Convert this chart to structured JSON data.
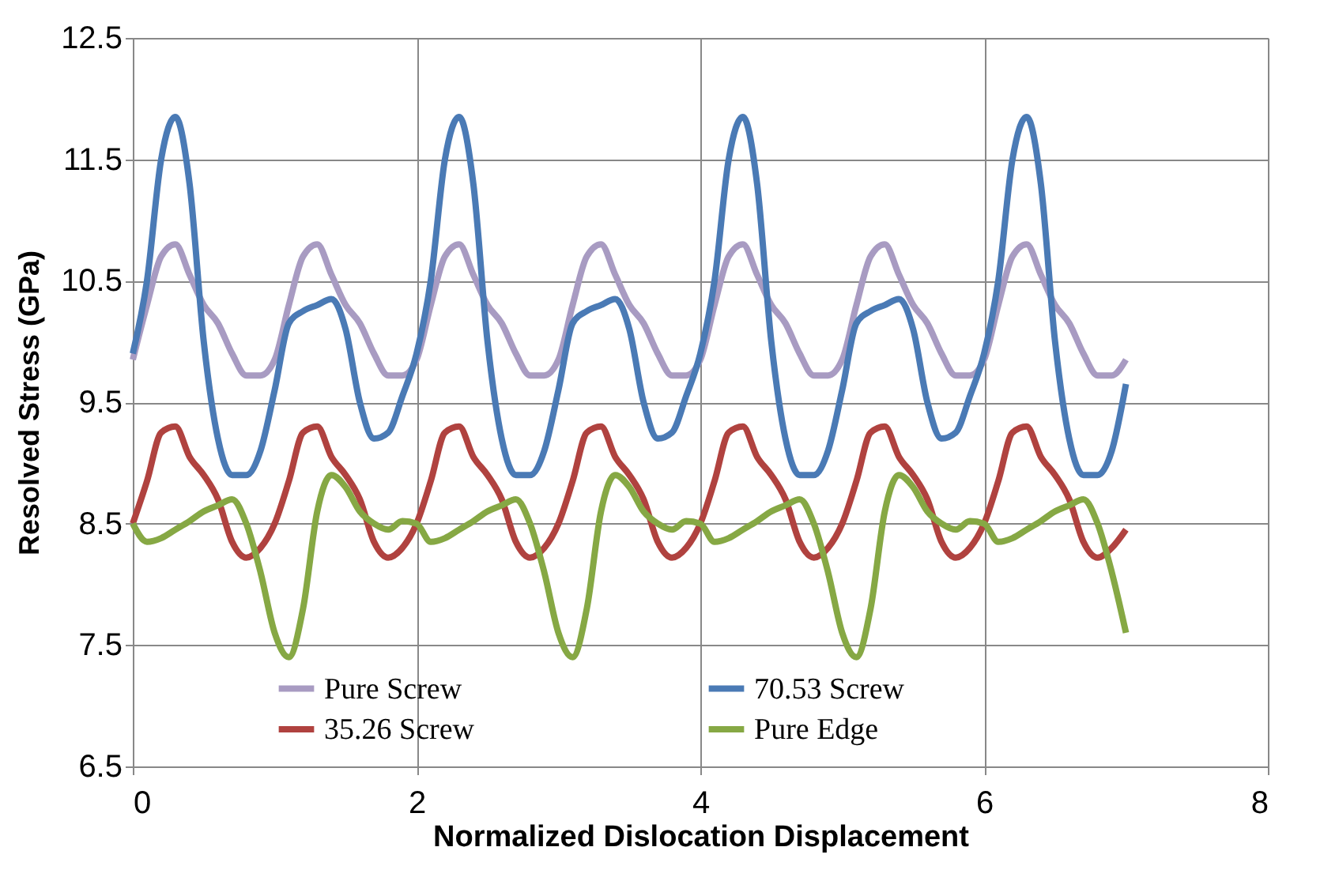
{
  "chart_data": {
    "type": "line",
    "xlabel": "Normalized Dislocation Displacement",
    "ylabel": "Resolved Stress (GPa)",
    "xlim": [
      0,
      8
    ],
    "xticks": [
      0,
      2,
      4,
      6,
      8
    ],
    "ylim": [
      6.5,
      12.5
    ],
    "yticks": [
      6.5,
      7.5,
      8.5,
      9.5,
      10.5,
      11.5,
      12.5
    ],
    "grid": true,
    "legend": "bottom",
    "marker": "none",
    "line_style": "solid",
    "x": [
      0,
      0.1,
      0.2,
      0.3,
      0.4,
      0.5,
      0.6,
      0.7,
      0.8,
      0.9,
      1,
      1.1,
      1.2,
      1.3,
      1.4,
      1.5,
      1.6,
      1.7,
      1.8,
      1.9,
      2,
      2.1,
      2.2,
      2.3,
      2.4,
      2.5,
      2.6,
      2.7,
      2.8,
      2.9,
      3,
      3.1,
      3.2,
      3.3,
      3.4,
      3.5,
      3.6,
      3.7,
      3.8,
      3.9,
      4,
      4.1,
      4.2,
      4.3,
      4.4,
      4.5,
      4.6,
      4.7,
      4.8,
      4.9,
      5,
      5.1,
      5.2,
      5.3,
      5.4,
      5.5,
      5.6,
      5.7,
      5.8,
      5.9,
      6,
      6.1,
      6.2,
      6.3,
      6.4,
      6.5,
      6.6,
      6.7,
      6.8,
      6.9,
      7
    ],
    "series": [
      {
        "name": "Pure Screw",
        "color": "#a89bc2",
        "values": [
          9.85,
          10.3,
          10.7,
          10.8,
          10.55,
          10.3,
          10.15,
          9.9,
          9.72,
          9.72,
          9.85,
          10.3,
          10.7,
          10.8,
          10.55,
          10.3,
          10.15,
          9.9,
          9.72,
          9.72,
          9.85,
          10.3,
          10.7,
          10.8,
          10.55,
          10.3,
          10.15,
          9.9,
          9.72,
          9.72,
          9.85,
          10.3,
          10.7,
          10.8,
          10.55,
          10.3,
          10.15,
          9.9,
          9.72,
          9.72,
          9.85,
          10.3,
          10.7,
          10.8,
          10.55,
          10.3,
          10.15,
          9.9,
          9.72,
          9.72,
          9.85,
          10.3,
          10.7,
          10.8,
          10.55,
          10.3,
          10.15,
          9.9,
          9.72,
          9.72,
          9.85,
          10.3,
          10.7,
          10.8,
          10.55,
          10.3,
          10.15,
          9.9,
          9.72,
          9.72,
          9.85
        ]
      },
      {
        "name": "70.53 Screw",
        "color": "#4a7ab5",
        "values": [
          9.9,
          10.5,
          11.5,
          11.85,
          11.3,
          10.0,
          9.2,
          8.9,
          8.9,
          9.1,
          9.6,
          10.15,
          10.25,
          10.3,
          10.35,
          10.1,
          9.5,
          9.2,
          9.25,
          9.55,
          9.9,
          10.5,
          11.5,
          11.85,
          11.3,
          10.0,
          9.2,
          8.9,
          8.9,
          9.1,
          9.6,
          10.15,
          10.25,
          10.3,
          10.35,
          10.1,
          9.5,
          9.2,
          9.25,
          9.55,
          9.9,
          10.5,
          11.5,
          11.85,
          11.3,
          10.0,
          9.2,
          8.9,
          8.9,
          9.1,
          9.6,
          10.15,
          10.25,
          10.3,
          10.35,
          10.1,
          9.5,
          9.2,
          9.25,
          9.55,
          9.9,
          10.5,
          11.5,
          11.85,
          11.3,
          10.0,
          9.2,
          8.9,
          8.9,
          9.1,
          9.65
        ]
      },
      {
        "name": "35.26 Screw",
        "color": "#b0423f",
        "values": [
          8.5,
          8.85,
          9.25,
          9.3,
          9.05,
          8.9,
          8.7,
          8.35,
          8.22,
          8.3,
          8.5,
          8.85,
          9.25,
          9.3,
          9.05,
          8.9,
          8.7,
          8.35,
          8.22,
          8.3,
          8.5,
          8.85,
          9.25,
          9.3,
          9.05,
          8.9,
          8.7,
          8.35,
          8.22,
          8.3,
          8.5,
          8.85,
          9.25,
          9.3,
          9.05,
          8.9,
          8.7,
          8.35,
          8.22,
          8.3,
          8.5,
          8.85,
          9.25,
          9.3,
          9.05,
          8.9,
          8.7,
          8.35,
          8.22,
          8.3,
          8.5,
          8.85,
          9.25,
          9.3,
          9.05,
          8.9,
          8.7,
          8.35,
          8.22,
          8.3,
          8.5,
          8.85,
          9.25,
          9.3,
          9.05,
          8.9,
          8.7,
          8.35,
          8.22,
          8.3,
          8.45
        ]
      },
      {
        "name": "Pure Edge",
        "color": "#86a844",
        "values": [
          8.5,
          8.35,
          8.38,
          8.45,
          8.52,
          8.6,
          8.65,
          8.7,
          8.5,
          8.1,
          7.6,
          7.4,
          7.8,
          8.6,
          8.9,
          8.8,
          8.6,
          8.5,
          8.45,
          8.52,
          8.5,
          8.35,
          8.38,
          8.45,
          8.52,
          8.6,
          8.65,
          8.7,
          8.5,
          8.1,
          7.6,
          7.4,
          7.8,
          8.6,
          8.9,
          8.8,
          8.6,
          8.5,
          8.45,
          8.52,
          8.5,
          8.35,
          8.38,
          8.45,
          8.52,
          8.6,
          8.65,
          8.7,
          8.5,
          8.1,
          7.6,
          7.4,
          7.8,
          8.6,
          8.9,
          8.8,
          8.6,
          8.5,
          8.45,
          8.52,
          8.5,
          8.35,
          8.38,
          8.45,
          8.52,
          8.6,
          8.65,
          8.7,
          8.5,
          8.1,
          7.6
        ]
      }
    ]
  }
}
